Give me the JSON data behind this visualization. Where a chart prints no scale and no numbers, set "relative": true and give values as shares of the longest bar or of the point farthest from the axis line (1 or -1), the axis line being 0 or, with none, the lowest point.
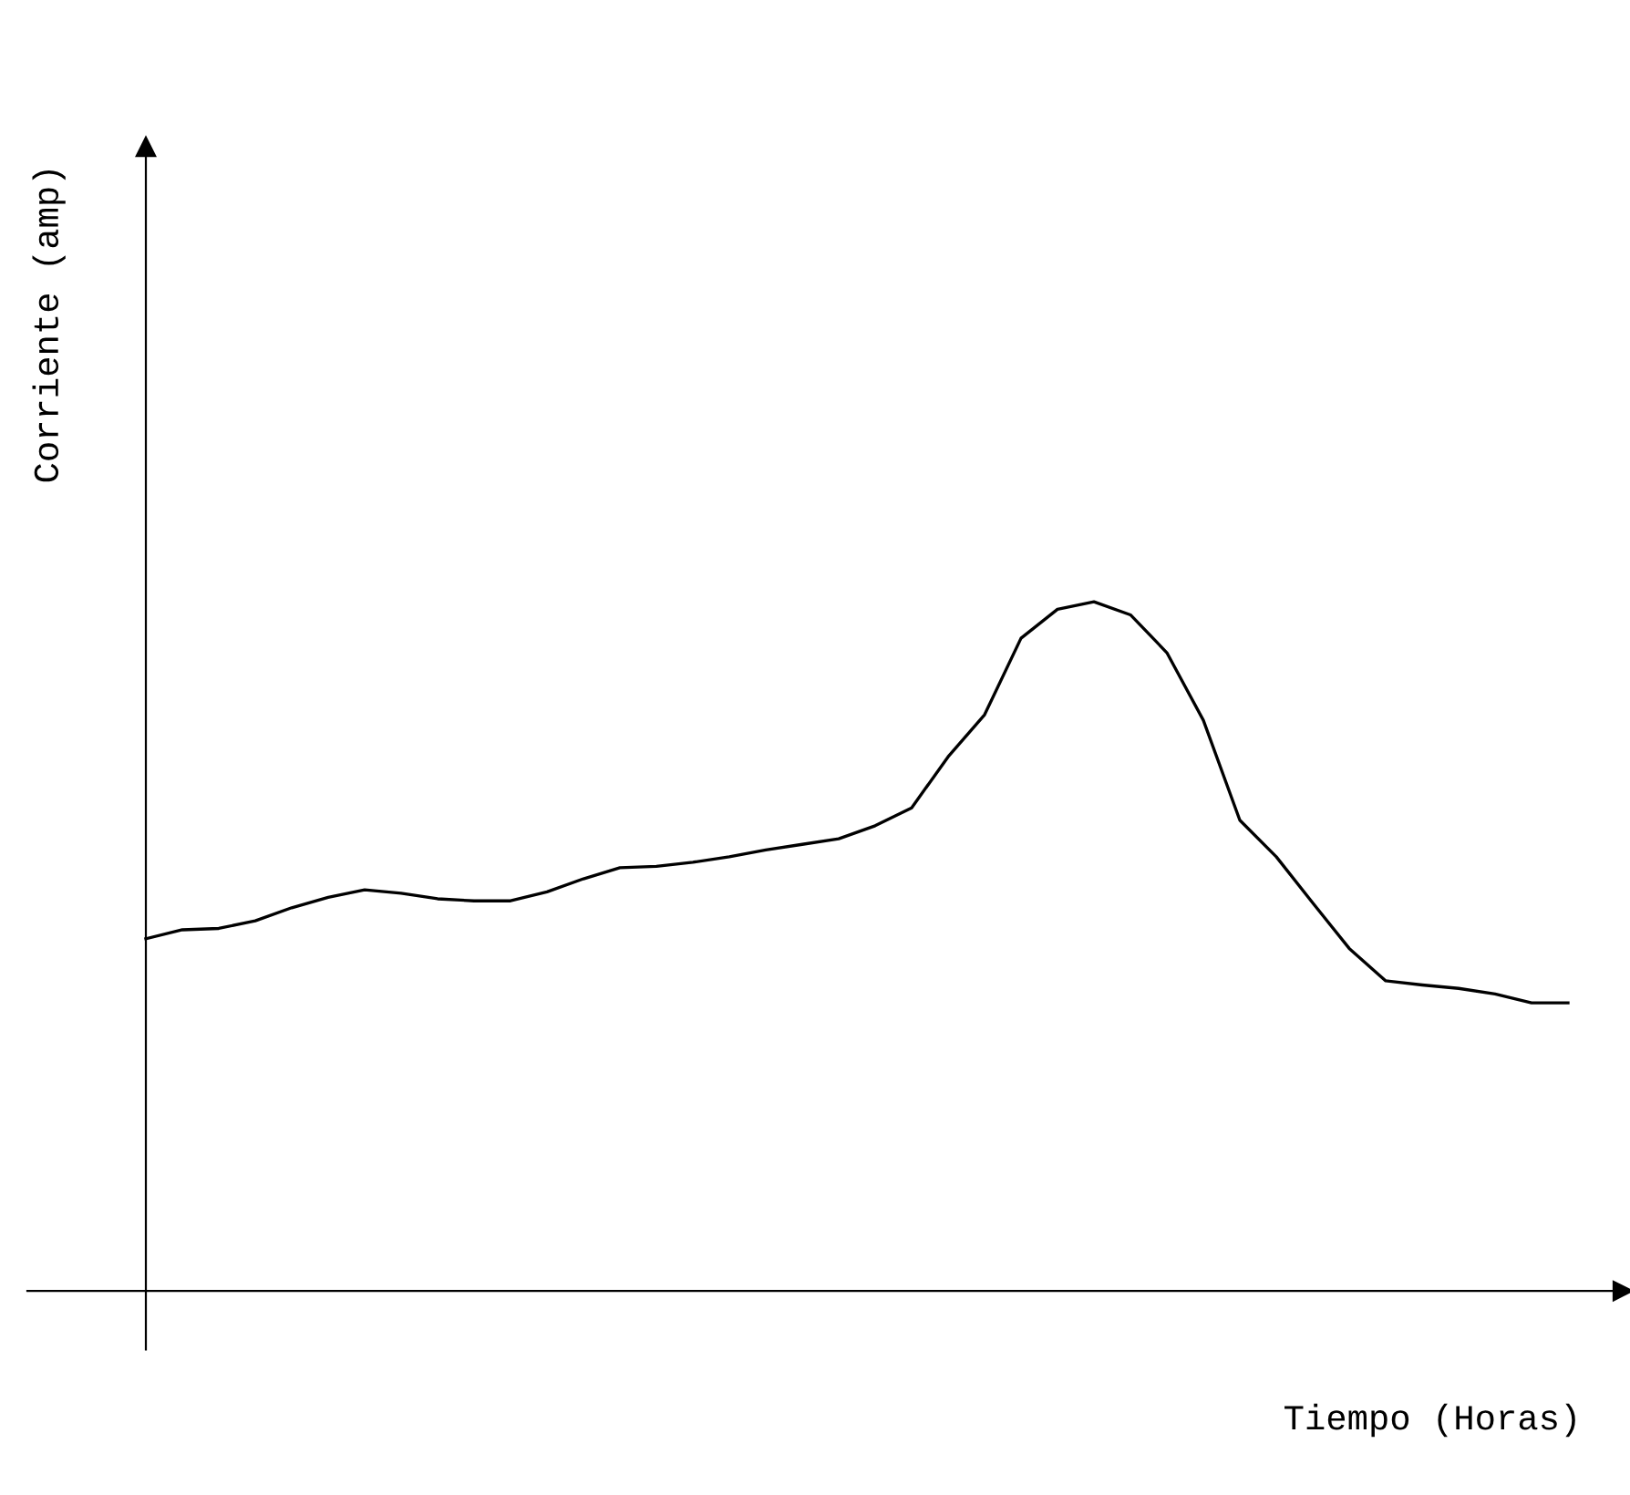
{
  "chart_data": {
    "type": "line",
    "relative": true,
    "xlabel": "Tiempo (Horas)",
    "ylabel": "Corriente (amp)",
    "categories": [
      null,
      null,
      null,
      null,
      null,
      null,
      null,
      null,
      null,
      null,
      null,
      null,
      null,
      null,
      null,
      null,
      null,
      null,
      null,
      null,
      null,
      null,
      null,
      null,
      null,
      null,
      null,
      null,
      null,
      null,
      null,
      null,
      null,
      null,
      null,
      null,
      null,
      null,
      null,
      null
    ],
    "series": [
      {
        "color": "#000000",
        "values": [
          0.511,
          0.524,
          0.526,
          0.537,
          0.556,
          0.571,
          0.582,
          0.577,
          0.569,
          0.566,
          0.566,
          0.579,
          0.598,
          0.614,
          0.616,
          0.622,
          0.63,
          0.64,
          0.648,
          0.656,
          0.675,
          0.701,
          0.775,
          0.836,
          0.947,
          0.989,
          1.0,
          0.981,
          0.926,
          0.828,
          0.683,
          0.63,
          0.563,
          0.497,
          0.45,
          0.444,
          0.439,
          0.431,
          0.418,
          0.418
        ]
      }
    ],
    "legend": false,
    "marker": "none",
    "line_style": "solid"
  }
}
